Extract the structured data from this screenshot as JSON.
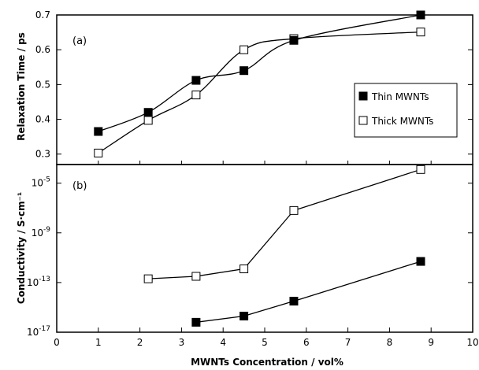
{
  "chart_data": [
    {
      "type": "line",
      "panel_label": "(a)",
      "ylabel": "Relaxation Time / ps",
      "xlim": [
        0,
        10
      ],
      "ylim": [
        0.27,
        0.7
      ],
      "yticks": [
        "0.3",
        "0.4",
        "0.5",
        "0.6",
        "0.7"
      ],
      "legend_position": "right",
      "series": [
        {
          "name": "Thin MWNTs",
          "marker": "filled-square",
          "x": [
            1.0,
            2.2,
            3.35,
            4.5,
            5.7,
            8.75
          ],
          "y": [
            0.365,
            0.42,
            0.512,
            0.54,
            0.627,
            0.7
          ]
        },
        {
          "name": "Thick MWNTs",
          "marker": "open-square",
          "x": [
            1.0,
            2.2,
            3.35,
            4.5,
            5.7,
            8.75
          ],
          "y": [
            0.303,
            0.397,
            0.47,
            0.6,
            0.632,
            0.651
          ]
        }
      ]
    },
    {
      "type": "line",
      "panel_label": "(b)",
      "ylabel": "Conductivity / S·cm⁻¹",
      "xlabel": "MWNTs Concentration / vol%",
      "xlim": [
        0,
        10
      ],
      "ylim_log10": [
        -17,
        -3.5
      ],
      "yscale": "log",
      "yticks": [
        {
          "base": "10",
          "exp": "-5",
          "value": -5
        },
        {
          "base": "10",
          "exp": "-9",
          "value": -9
        },
        {
          "base": "10",
          "exp": "-13",
          "value": -13
        },
        {
          "base": "10",
          "exp": "-17",
          "value": -17
        }
      ],
      "xticks": [
        "0",
        "1",
        "2",
        "3",
        "4",
        "5",
        "6",
        "7",
        "8",
        "9",
        "10"
      ],
      "series": [
        {
          "name": "Thin MWNTs",
          "marker": "filled-square",
          "x": [
            3.35,
            4.5,
            5.7,
            8.75
          ],
          "y_log10": [
            -16.2,
            -15.7,
            -14.5,
            -11.3
          ]
        },
        {
          "name": "Thick MWNTs",
          "marker": "open-square",
          "x": [
            2.2,
            3.35,
            4.5,
            5.7,
            8.75
          ],
          "y_log10": [
            -12.7,
            -12.5,
            -11.9,
            -7.2,
            -3.9
          ]
        }
      ]
    }
  ]
}
